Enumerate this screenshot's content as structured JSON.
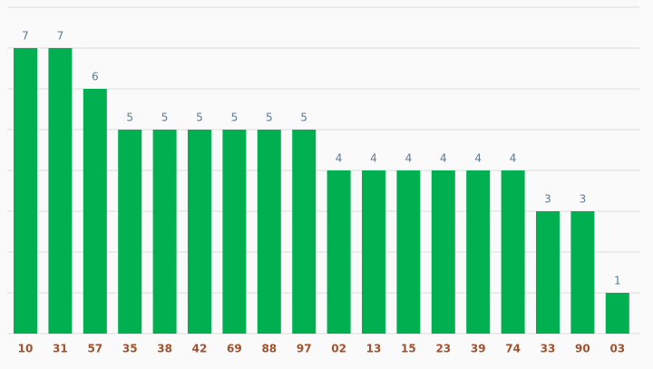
{
  "chart_data": {
    "type": "bar",
    "categories": [
      "10",
      "31",
      "57",
      "35",
      "38",
      "42",
      "69",
      "88",
      "97",
      "02",
      "13",
      "15",
      "23",
      "39",
      "74",
      "33",
      "90",
      "03"
    ],
    "values": [
      7,
      7,
      6,
      5,
      5,
      5,
      5,
      5,
      5,
      4,
      4,
      4,
      4,
      4,
      4,
      3,
      3,
      1
    ],
    "color": "#00b050",
    "ylim": [
      0,
      8
    ],
    "yticks": [
      0,
      1,
      2,
      3,
      4,
      5,
      6,
      7,
      8
    ],
    "grid": true
  }
}
